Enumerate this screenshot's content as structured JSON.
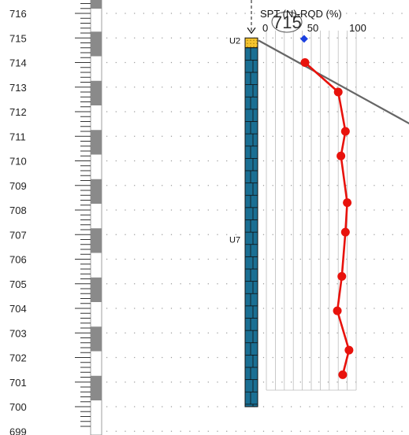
{
  "chart_data": {
    "type": "line",
    "title": "SPT (N)-RQD (%)",
    "elevation_axis": {
      "ticks": [
        "716",
        "715",
        "714",
        "713",
        "712",
        "711",
        "710",
        "709",
        "708",
        "707",
        "706",
        "705",
        "704",
        "703",
        "702",
        "701",
        "700",
        "699"
      ]
    },
    "x_ticks": [
      "0",
      "50",
      "100"
    ],
    "xlim": [
      0,
      100
    ],
    "marker_label": "715",
    "units": [
      {
        "label": "U2",
        "top": 715.0,
        "bottom": 714.6,
        "color": "#f4c430"
      },
      {
        "label": "U7",
        "top": 714.6,
        "bottom": 700.0,
        "color": "#1a6f93"
      }
    ],
    "series": [
      {
        "color": "#e8120c",
        "points": [
          {
            "elev": 714.0,
            "value": 43
          },
          {
            "elev": 712.8,
            "value": 80
          },
          {
            "elev": 711.2,
            "value": 88
          },
          {
            "elev": 710.2,
            "value": 83
          },
          {
            "elev": 708.3,
            "value": 90
          },
          {
            "elev": 707.1,
            "value": 88
          },
          {
            "elev": 705.3,
            "value": 84
          },
          {
            "elev": 703.9,
            "value": 79
          },
          {
            "elev": 702.3,
            "value": 92
          },
          {
            "elev": 701.3,
            "value": 85
          }
        ]
      }
    ],
    "diamond": {
      "elev": 714.1,
      "value": 42,
      "color": "#1a3fe0"
    },
    "water_line": {
      "from": {
        "elev": 714.9,
        "value": 0
      },
      "to": {
        "elev": 711.4,
        "value": 165
      },
      "color": "#666666"
    }
  }
}
